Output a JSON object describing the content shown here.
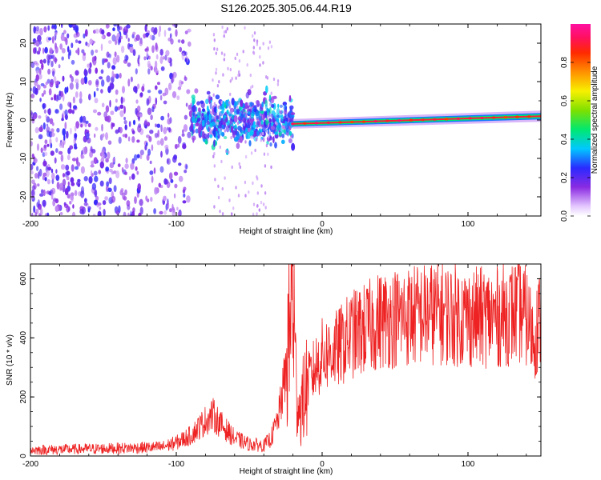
{
  "title": "S126.2025.305.06.44.R19",
  "colors": {
    "snr_line": "#ee2222",
    "scatter_purple": "#7733ee",
    "axis": "#000000",
    "background": "#ffffff"
  },
  "chart_data": [
    {
      "type": "heatmap",
      "name": "spectrogram",
      "xlabel": "Height of straight line (km)",
      "ylabel": "Frequency (Hz)",
      "xlim": [
        -200,
        150
      ],
      "ylim": [
        -25,
        25
      ],
      "xticks": [
        -200,
        -100,
        0,
        100
      ],
      "yticks": [
        -20,
        -10,
        0,
        10,
        20
      ],
      "colorbar": {
        "label": "Normalized spectral amplitude",
        "range": [
          0.0,
          1.0
        ],
        "ticks": [
          0.0,
          0.2,
          0.4,
          0.6,
          0.8
        ],
        "colormap": "rainbow (purple-blue-cyan-green-yellow-orange-red-magenta)"
      },
      "signal_track": {
        "start_km": -20,
        "end_km": 150,
        "frequency_at_start_hz": -1.0,
        "frequency_at_end_hz": 1.0,
        "peak_amplitude": 0.9
      },
      "noise_regions": [
        {
          "x_range": [
            -200,
            -90
          ],
          "frequency_range": [
            -25,
            25
          ],
          "amplitude": 0.2
        },
        {
          "x_range": [
            -90,
            -20
          ],
          "frequency_range": [
            -8,
            6
          ],
          "amplitude": 0.3
        }
      ]
    },
    {
      "type": "line",
      "name": "snr",
      "xlabel": "Height of straight line (km)",
      "ylabel": "SNR (10 * v/v)",
      "xlim": [
        -200,
        150
      ],
      "ylim": [
        0,
        650
      ],
      "xticks": [
        -200,
        -100,
        0,
        100
      ],
      "yticks": [
        0,
        200,
        400,
        600
      ],
      "series": [
        {
          "name": "SNR",
          "x": [
            -200,
            -150,
            -110,
            -100,
            -90,
            -80,
            -75,
            -70,
            -60,
            -50,
            -40,
            -35,
            -30,
            -25,
            -22,
            -20,
            -18,
            -15,
            -10,
            0,
            10,
            20,
            30,
            40,
            60,
            80,
            100,
            120,
            135,
            140,
            145,
            150
          ],
          "y": [
            20,
            25,
            30,
            45,
            70,
            120,
            140,
            110,
            60,
            40,
            35,
            60,
            130,
            280,
            450,
            580,
            250,
            150,
            250,
            340,
            360,
            410,
            430,
            460,
            475,
            485,
            470,
            470,
            490,
            470,
            400,
            470
          ]
        }
      ]
    }
  ]
}
